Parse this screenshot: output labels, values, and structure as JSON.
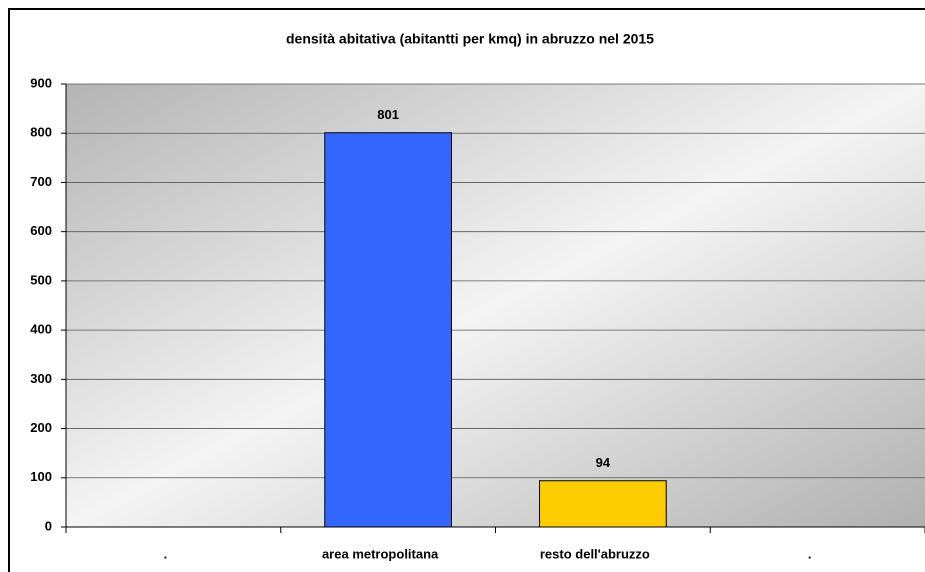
{
  "chart_data": {
    "type": "bar",
    "title": "densità abitativa (abitantti per kmq) in abruzzo nel 2015",
    "categories": [
      ".",
      "area metropolitana",
      "resto dell'abruzzo",
      "."
    ],
    "values": [
      null,
      801,
      94,
      null
    ],
    "colors": [
      null,
      "#3366ff",
      "#ffcc00",
      null
    ],
    "ylim": [
      0,
      900
    ],
    "yticks": [
      0,
      100,
      200,
      300,
      400,
      500,
      600,
      700,
      800,
      900
    ],
    "grid": true
  }
}
